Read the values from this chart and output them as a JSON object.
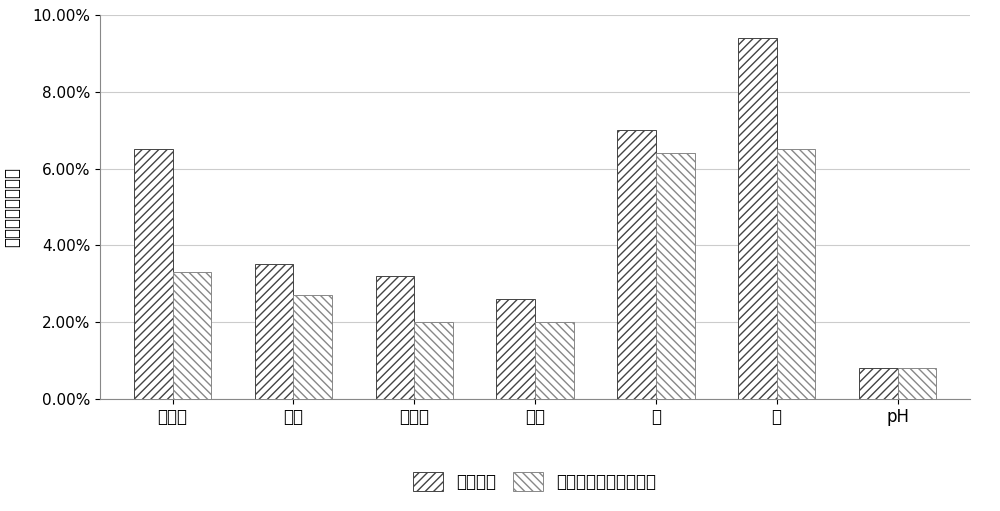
{
  "categories": [
    "尼古丁",
    "总糖",
    "还原糖",
    "总氮",
    "钒",
    "氯",
    "pH"
  ],
  "series1_label": "常规加工",
  "series2_label": "时间空间轴取样均质化",
  "ylabel_chars": [
    "各",
    "指",
    "标",
    "相",
    "对",
    "标",
    "准",
    "差"
  ],
  "series1_values": [
    0.065,
    0.035,
    0.032,
    0.026,
    0.07,
    0.094,
    0.008
  ],
  "series2_values": [
    0.033,
    0.027,
    0.02,
    0.02,
    0.064,
    0.065,
    0.008
  ],
  "ylim": [
    0,
    0.1
  ],
  "yticks": [
    0.0,
    0.02,
    0.04,
    0.06,
    0.08,
    0.1
  ],
  "ytick_labels": [
    "0.00%",
    "2.00%",
    "4.00%",
    "6.00%",
    "8.00%",
    "10.00%"
  ],
  "bar_width": 0.32,
  "series1_hatch": "////",
  "series2_hatch": "\\\\\\\\",
  "series1_facecolor": "#ffffff",
  "series2_facecolor": "#ffffff",
  "series1_edgecolor": "#444444",
  "series2_edgecolor": "#888888",
  "background_color": "#ffffff",
  "grid_color": "#cccccc",
  "figsize": [
    10.0,
    5.11
  ]
}
